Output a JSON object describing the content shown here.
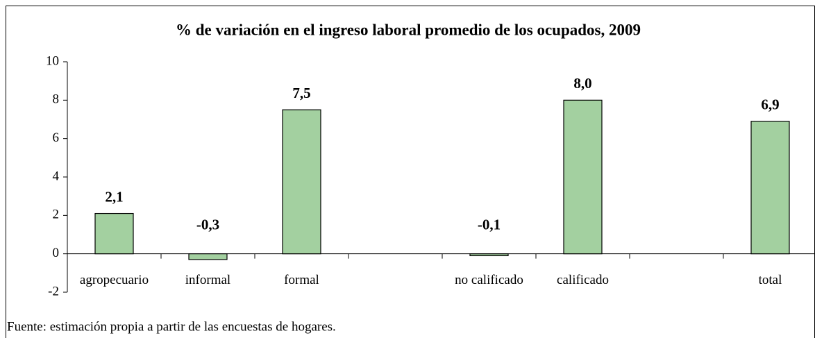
{
  "chart_data": {
    "type": "bar",
    "title": "% de variación en el ingreso laboral promedio de los ocupados, 2009",
    "categories": [
      "agropecuario",
      "informal",
      "formal",
      null,
      "no calificado",
      "calificado",
      null,
      "total"
    ],
    "values": [
      2.1,
      -0.3,
      7.5,
      null,
      -0.1,
      8.0,
      null,
      6.9
    ],
    "value_labels": [
      "2,1",
      "-0,3",
      "7,5",
      null,
      "-0,1",
      "8,0",
      null,
      "6,9"
    ],
    "color": "#a3d0a0",
    "ylim": [
      -2,
      10
    ],
    "yticks": [
      -2,
      0,
      2,
      4,
      6,
      8,
      10
    ],
    "grid": false,
    "source": "Fuente: estimación propia a partir de las encuestas de hogares."
  }
}
